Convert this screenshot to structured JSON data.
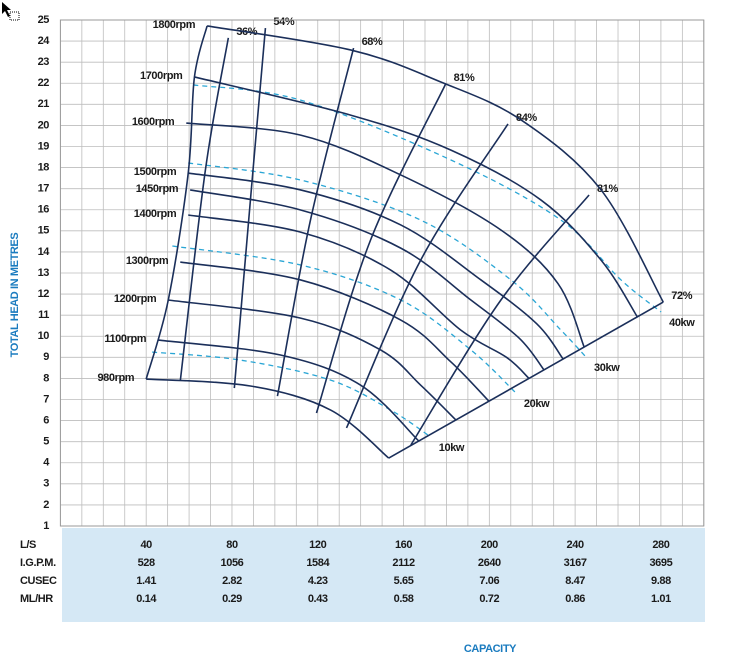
{
  "chart_data": {
    "type": "line",
    "ylabel": "TOTAL HEAD IN METRES",
    "xlabel": "CAPACITY",
    "xlim": [
      0,
      300
    ],
    "ylim": [
      1,
      25
    ],
    "yticks": [
      1,
      2,
      3,
      4,
      5,
      6,
      7,
      8,
      9,
      10,
      11,
      12,
      13,
      14,
      15,
      16,
      17,
      18,
      19,
      20,
      21,
      22,
      23,
      24,
      25
    ],
    "xticks": [
      40,
      80,
      120,
      160,
      200,
      240,
      280
    ],
    "xtick_row_label": "L/S",
    "xgrid": [
      0,
      10,
      20,
      30,
      40,
      50,
      60,
      70,
      80,
      90,
      100,
      110,
      120,
      130,
      140,
      150,
      160,
      170,
      180,
      190,
      200,
      210,
      220,
      230,
      240,
      250,
      260,
      270,
      280,
      290,
      300
    ],
    "grid": true,
    "scale_rows": [
      {
        "label": "I.G.P.M.",
        "values": [
          528,
          1056,
          1584,
          2112,
          2640,
          3167,
          3695
        ]
      },
      {
        "label": "CUSEC",
        "values": [
          1.41,
          2.82,
          4.23,
          5.65,
          7.06,
          8.47,
          9.88
        ]
      },
      {
        "label": "ML/HR",
        "values": [
          0.14,
          0.29,
          0.43,
          0.58,
          0.72,
          0.86,
          1.01
        ]
      }
    ],
    "speed_curves": {
      "color": "#1b2f5a",
      "series": [
        {
          "name": "1800rpm",
          "x": [
            68.4,
            135.3,
            177.4,
            214.8,
            252.1,
            281.1
          ],
          "values": [
            24.72,
            23.58,
            22.06,
            20.26,
            16.94,
            11.62
          ]
        },
        {
          "name": "1700rpm",
          "x": [
            62.5,
            135.3,
            182.1,
            224.1,
            252.1,
            269
          ],
          "values": [
            22.3,
            20.49,
            18.83,
            16.46,
            13.61,
            10.92
          ]
        },
        {
          "name": "1600rpm",
          "x": [
            58.7,
            112,
            158.7,
            205.4,
            232,
            244.2
          ],
          "values": [
            20.11,
            19.54,
            17.65,
            15.04,
            12.5,
            9.49
          ]
        },
        {
          "name": "1500rpm",
          "x": [
            59.6,
            112,
            158.7,
            196.1,
            222,
            234.4
          ],
          "values": [
            17.74,
            16.94,
            15.28,
            12.67,
            10.6,
            8.92
          ]
        },
        {
          "name": "1450rpm",
          "x": [
            60.5,
            112,
            158.7,
            191.4,
            214,
            225.5
          ],
          "values": [
            16.94,
            15.99,
            14.18,
            11.72,
            9.9,
            8.4
          ]
        },
        {
          "name": "1400rpm",
          "x": [
            59.6,
            112,
            154,
            186.7,
            208,
            218.5
          ],
          "values": [
            15.75,
            14.94,
            13.14,
            10.29,
            9.0,
            8.0
          ]
        },
        {
          "name": "1300rpm",
          "x": [
            55.9,
            112,
            158.7,
            182.1,
            199.8
          ],
          "values": [
            13.52,
            12.67,
            10.77,
            8.78,
            6.92
          ]
        },
        {
          "name": "1200rpm",
          "x": [
            50.3,
            112,
            149.3,
            168,
            184.4
          ],
          "values": [
            11.72,
            10.86,
            9.35,
            7.68,
            6.03
          ]
        },
        {
          "name": "1100rpm",
          "x": [
            45.6,
            102.6,
            140,
            167.1
          ],
          "values": [
            9.82,
            9.11,
            7.68,
            5.03
          ]
        },
        {
          "name": "980rpm",
          "x": [
            40,
            88.6,
            126,
            153.1
          ],
          "values": [
            7.97,
            7.64,
            6.5,
            4.22
          ]
        }
      ]
    },
    "efficiency_curves": {
      "color": "#1b2f5a",
      "series": [
        {
          "x": [
            40,
            50.3,
            59.6,
            62.5,
            68.4
          ],
          "values": [
            7.97,
            11.72,
            17.74,
            22.3,
            24.72
          ]
        },
        {
          "name": "36%",
          "x": [
            55.9,
            67.6,
            78.3
          ],
          "values": [
            7.88,
            17.88,
            24.15
          ]
        },
        {
          "name": "54%",
          "x": [
            81.1,
            88.6,
            95.6
          ],
          "values": [
            7.54,
            16.46,
            24.62
          ]
        },
        {
          "name": "68%",
          "x": [
            101.2,
            116.6,
            136.7
          ],
          "values": [
            7.16,
            15.51,
            23.67
          ]
        },
        {
          "name": "81%",
          "x": [
            119.4,
            144.6,
            179.6
          ],
          "values": [
            6.36,
            14.56,
            21.96
          ]
        },
        {
          "name": "84%",
          "x": [
            133.4,
            168,
            208.7
          ],
          "values": [
            5.65,
            13.61,
            20.07
          ]
        },
        {
          "name": "81%",
          "x": [
            163.4,
            205.4,
            246.5
          ],
          "values": [
            4.84,
            11.72,
            16.7
          ]
        },
        {
          "name": "72%",
          "x": [
            153.1,
            281.1
          ],
          "values": [
            4.22,
            11.62
          ]
        }
      ]
    },
    "power_curves": {
      "color": "#2aa6d5",
      "dashed": true,
      "series": [
        {
          "name": "40kw",
          "x": [
            62,
            112,
            182.1,
            233.4,
            261.4,
            280.1
          ],
          "values": [
            21.92,
            21.2,
            18.36,
            15.51,
            12.67,
            11.15
          ]
        },
        {
          "name": "30kw",
          "x": [
            59.6,
            112,
            168,
            210.1,
            233.4,
            245.1
          ],
          "values": [
            18.22,
            17.41,
            15.51,
            12.67,
            10.29,
            9.01
          ]
        },
        {
          "name": "20kw",
          "x": [
            52.2,
            112,
            158.7,
            191.4,
            212.4
          ],
          "values": [
            14.28,
            13.38,
            11.72,
            9.35,
            7.31
          ]
        },
        {
          "name": "10kw",
          "x": [
            42.8,
            83.9,
            126,
            154,
            172.7
          ],
          "values": [
            9.25,
            8.87,
            7.92,
            6.5,
            5.22
          ]
        }
      ]
    }
  }
}
